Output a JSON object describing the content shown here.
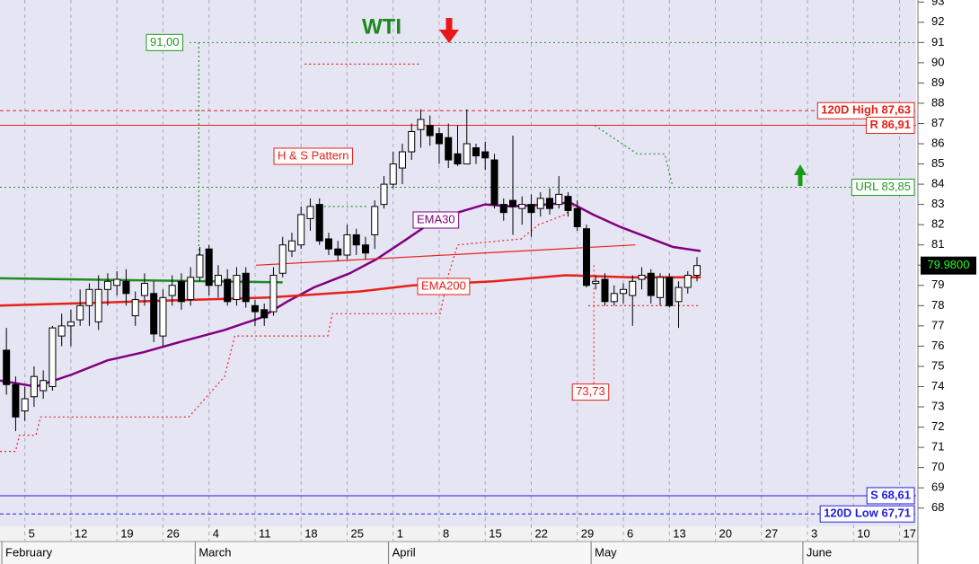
{
  "chart_data": {
    "type": "candlestick",
    "title": "WTI",
    "categories": [
      null,
      null,
      "5",
      null,
      null,
      null,
      null,
      "12",
      null,
      null,
      null,
      null,
      "19",
      null,
      null,
      null,
      null,
      "26",
      null,
      null,
      null,
      null,
      "4",
      null,
      null,
      null,
      null,
      "11",
      null,
      null,
      null,
      null,
      "18",
      null,
      null,
      null,
      null,
      "25",
      null,
      null,
      null,
      null,
      "1",
      null,
      null,
      null,
      null,
      "8",
      null,
      null,
      null,
      null,
      "15",
      null,
      null,
      null,
      null,
      "22",
      null,
      null,
      null,
      null,
      "29",
      null,
      null,
      null,
      null,
      "6",
      null,
      null,
      null,
      null,
      "13",
      null,
      null,
      null,
      null,
      "20",
      null,
      null,
      null,
      null,
      "27",
      null,
      null,
      null,
      null,
      "3",
      null,
      null,
      null,
      null,
      "10",
      null,
      null,
      null,
      null,
      "17",
      null
    ],
    "months": [
      {
        "label": "February",
        "start": 0
      },
      {
        "label": "March",
        "start": 21
      },
      {
        "label": "April",
        "start": 42
      },
      {
        "label": "May",
        "start": 64
      },
      {
        "label": "June",
        "start": 87
      }
    ],
    "xlim": [
      -0.7,
      98.8
    ],
    "ylim": [
      67.1,
      93.1
    ],
    "yticks": [
      68,
      69,
      70,
      71,
      72,
      73,
      74,
      75,
      76,
      77,
      78,
      79,
      80,
      81,
      82,
      83,
      84,
      85,
      86,
      87,
      88,
      89,
      90,
      91,
      92,
      93
    ],
    "grid": true,
    "candles": {
      "open": [
        75.8,
        74.1,
        72.8,
        73.5,
        73.8,
        74.0,
        76.5,
        77.0,
        77.3,
        78.0,
        77.2,
        78.8,
        79.0,
        79.2,
        77.5,
        78.5,
        78.6,
        76.5,
        78.5,
        79.2,
        78.3,
        79.4,
        80.8,
        79.0,
        79.3,
        78.3,
        79.6,
        78.0,
        77.8,
        77.7,
        79.6,
        80.7,
        81.0,
        82.3,
        83.0,
        81.3,
        80.8,
        80.5,
        81.5,
        81.0,
        81.5,
        83.0,
        84.0,
        84.8,
        85.6,
        86.7,
        86.9,
        86.5,
        86.3,
        85.5,
        85.0,
        85.8,
        85.6,
        85.2,
        83.0,
        83.2,
        82.8,
        83.0,
        82.8,
        83.3,
        83.0,
        83.4,
        82.8,
        81.8,
        79.1,
        79.3,
        78.2,
        78.6,
        78.5,
        79.3,
        79.6,
        78.4,
        79.4,
        78.2,
        78.9,
        79.5,
        null,
        null,
        null,
        null,
        null,
        null,
        null,
        null,
        null,
        null,
        null,
        null,
        null,
        null,
        null,
        null,
        null,
        null,
        null,
        null,
        null,
        null,
        null
      ],
      "high": [
        76.9,
        74.5,
        74.0,
        75.0,
        74.8,
        77.0,
        77.6,
        77.8,
        78.8,
        79.1,
        79.5,
        79.6,
        79.7,
        79.8,
        78.7,
        79.6,
        79.2,
        78.8,
        79.5,
        79.6,
        79.9,
        80.9,
        81.0,
        80.0,
        79.8,
        79.9,
        79.9,
        78.3,
        78.1,
        79.9,
        81.4,
        81.6,
        82.9,
        83.3,
        83.3,
        81.6,
        81.2,
        82.0,
        81.8,
        81.4,
        83.2,
        84.4,
        85.6,
        86.0,
        87.0,
        87.7,
        87.4,
        86.8,
        87.0,
        86.9,
        87.7,
        86.0,
        86.1,
        85.5,
        83.3,
        86.4,
        83.4,
        83.5,
        83.6,
        83.8,
        84.4,
        83.6,
        83.2,
        82.0,
        79.5,
        79.6,
        79.0,
        79.1,
        79.5,
        79.9,
        79.8,
        79.6,
        79.6,
        79.2,
        79.7,
        80.4,
        null,
        null,
        null,
        null,
        null,
        null,
        null,
        null,
        null,
        null,
        null,
        null,
        null,
        null,
        null,
        null,
        null,
        null,
        null,
        null,
        null,
        null,
        null
      ],
      "low": [
        73.6,
        71.8,
        72.3,
        73.0,
        73.4,
        73.8,
        76.0,
        76.0,
        77.0,
        77.0,
        76.8,
        78.0,
        78.5,
        78.0,
        77.0,
        78.0,
        76.2,
        76.0,
        78.0,
        77.8,
        78.0,
        79.2,
        78.5,
        78.4,
        78.0,
        78.0,
        77.9,
        77.0,
        77.0,
        77.5,
        79.4,
        80.4,
        80.8,
        81.7,
        81.0,
        80.5,
        80.2,
        80.3,
        80.5,
        80.3,
        80.8,
        82.8,
        83.8,
        84.0,
        85.2,
        85.8,
        85.9,
        85.0,
        84.8,
        84.9,
        85.0,
        85.0,
        84.7,
        82.8,
        82.2,
        81.5,
        82.0,
        81.4,
        82.4,
        82.5,
        82.8,
        82.4,
        81.7,
        78.9,
        78.8,
        78.0,
        78.0,
        78.1,
        77.0,
        78.8,
        78.1,
        78.0,
        77.9,
        76.9,
        78.6,
        79.2,
        null,
        null,
        null,
        null,
        null,
        null,
        null,
        null,
        null,
        null,
        null,
        null,
        null,
        null,
        null,
        null,
        null,
        null,
        null,
        null,
        null,
        null,
        null
      ],
      "close": [
        74.1,
        72.5,
        73.4,
        74.5,
        74.3,
        76.9,
        77.0,
        77.2,
        78.0,
        78.8,
        78.8,
        79.2,
        79.3,
        78.6,
        78.3,
        79.1,
        76.6,
        78.4,
        79.0,
        78.2,
        79.4,
        80.5,
        79.0,
        79.5,
        78.2,
        79.5,
        78.2,
        77.7,
        77.4,
        79.5,
        81.0,
        81.2,
        82.5,
        82.9,
        81.2,
        80.8,
        80.5,
        81.5,
        81.0,
        80.6,
        82.9,
        84.0,
        85.0,
        85.6,
        86.6,
        87.2,
        86.4,
        86.0,
        85.2,
        85.0,
        86.0,
        85.4,
        85.3,
        83.0,
        82.6,
        82.9,
        83.0,
        82.6,
        83.3,
        82.8,
        83.5,
        82.7,
        81.9,
        79.0,
        79.2,
        78.2,
        78.6,
        78.8,
        79.2,
        79.5,
        78.5,
        79.4,
        78.0,
        78.9,
        79.5,
        79.98,
        null,
        null,
        null,
        null,
        null,
        null,
        null,
        null,
        null,
        null,
        null,
        null,
        null,
        null,
        null,
        null,
        null,
        null,
        null,
        null,
        null,
        null,
        null
      ]
    },
    "last_price": {
      "value": 79.98,
      "label": "79.9800"
    },
    "lines": [
      {
        "name": "EMA30",
        "color": "#800080",
        "style": "thick",
        "x": [
          -0.7,
          3.2,
          7.1,
          11.0,
          14.9,
          18.8,
          23.7,
          27.6,
          30.5,
          33.4,
          37.3,
          40.2,
          43.2,
          46.1,
          49.0,
          52.0,
          54.9,
          58.8,
          61.2,
          63.7,
          66.6,
          69.5,
          72.4,
          75.4
        ],
        "values": [
          74.3,
          74.0,
          74.6,
          75.3,
          75.7,
          76.2,
          76.8,
          77.4,
          78.2,
          78.9,
          79.6,
          80.3,
          81.2,
          82.1,
          82.6,
          83.0,
          82.9,
          83.0,
          83.1,
          82.5,
          81.9,
          81.4,
          80.9,
          80.7
        ]
      },
      {
        "name": "EMA200",
        "color": "#e8201a",
        "style": "thick",
        "x": [
          -0.7,
          13.9,
          28.5,
          38.3,
          44.1,
          52.9,
          60.7,
          67.6,
          75.4
        ],
        "values": [
          78.0,
          78.2,
          78.4,
          78.7,
          79.0,
          79.2,
          79.5,
          79.4,
          79.4
        ]
      },
      {
        "color": "#1f8a1f",
        "style": "thick",
        "x": [
          -0.7,
          30.0
        ],
        "values": [
          79.35,
          79.15
        ]
      },
      {
        "color": "#e8201a",
        "style": "thin",
        "x": [
          27.1,
          68.3
        ],
        "values": [
          80.0,
          81.0
        ]
      },
      {
        "color": "#e8201a",
        "style": "dotted",
        "x": [
          -0.7,
          1.0,
          1.4,
          3.2,
          3.7,
          19.8,
          23.7,
          24.8,
          34.9,
          35.4,
          47.1,
          48.0,
          49.0,
          55.9,
          57.8,
          60.7,
          61.7
        ],
        "values": [
          70.8,
          70.8,
          71.6,
          71.6,
          72.5,
          72.5,
          74.5,
          76.5,
          76.5,
          77.6,
          77.6,
          79.5,
          81.0,
          81.3,
          82.0,
          82.5,
          83.0
        ]
      },
      {
        "color": "#e8201a",
        "style": "dotted",
        "x": [
          32.4,
          45.1
        ],
        "values": [
          89.93,
          89.93
        ]
      },
      {
        "color": "#e8201a",
        "style": "dotted",
        "x": [
          63.2,
          75.4
        ],
        "values": [
          78.0,
          78.0
        ]
      },
      {
        "color": "#1f9a1f",
        "style": "dotted",
        "x": [
          63.9,
          68.5,
          71.5,
          72.3
        ],
        "values": [
          86.9,
          85.5,
          85.5,
          84.0
        ]
      },
      {
        "color": "#1f9a1f",
        "style": "dotted",
        "x": [
          20.9,
          20.9
        ],
        "values": [
          80.5,
          91.0
        ]
      },
      {
        "color": "#1f9a1f",
        "style": "dotted",
        "x": [
          34.0,
          39.3
        ],
        "values": [
          82.9,
          82.9
        ]
      }
    ],
    "hlines": [
      {
        "value": 91.0,
        "label": "91,00",
        "color": "#1f9a1f",
        "style": "dotted"
      },
      {
        "value": 87.63,
        "label": "120D High 87,63",
        "color": "#e8201a",
        "style": "dashed"
      },
      {
        "value": 86.91,
        "label": "R 86,91",
        "color": "#e8201a",
        "style": "solid"
      },
      {
        "value": 83.85,
        "label": "URL 83,85",
        "color": "#1f9a1f",
        "style": "dotted"
      },
      {
        "value": 68.61,
        "label": "S 68,61",
        "color": "#2020e0",
        "style": "solid"
      },
      {
        "value": 67.71,
        "label": "120D Low 67,71",
        "color": "#2020e0",
        "style": "dashed"
      }
    ],
    "projection": {
      "x": 63.8,
      "from": 80.0,
      "value": 73.73,
      "label": "73,73",
      "color": "#e8201a"
    },
    "annotations": [
      {
        "text": "H & S Pattern",
        "color": "#e8201a"
      }
    ]
  }
}
